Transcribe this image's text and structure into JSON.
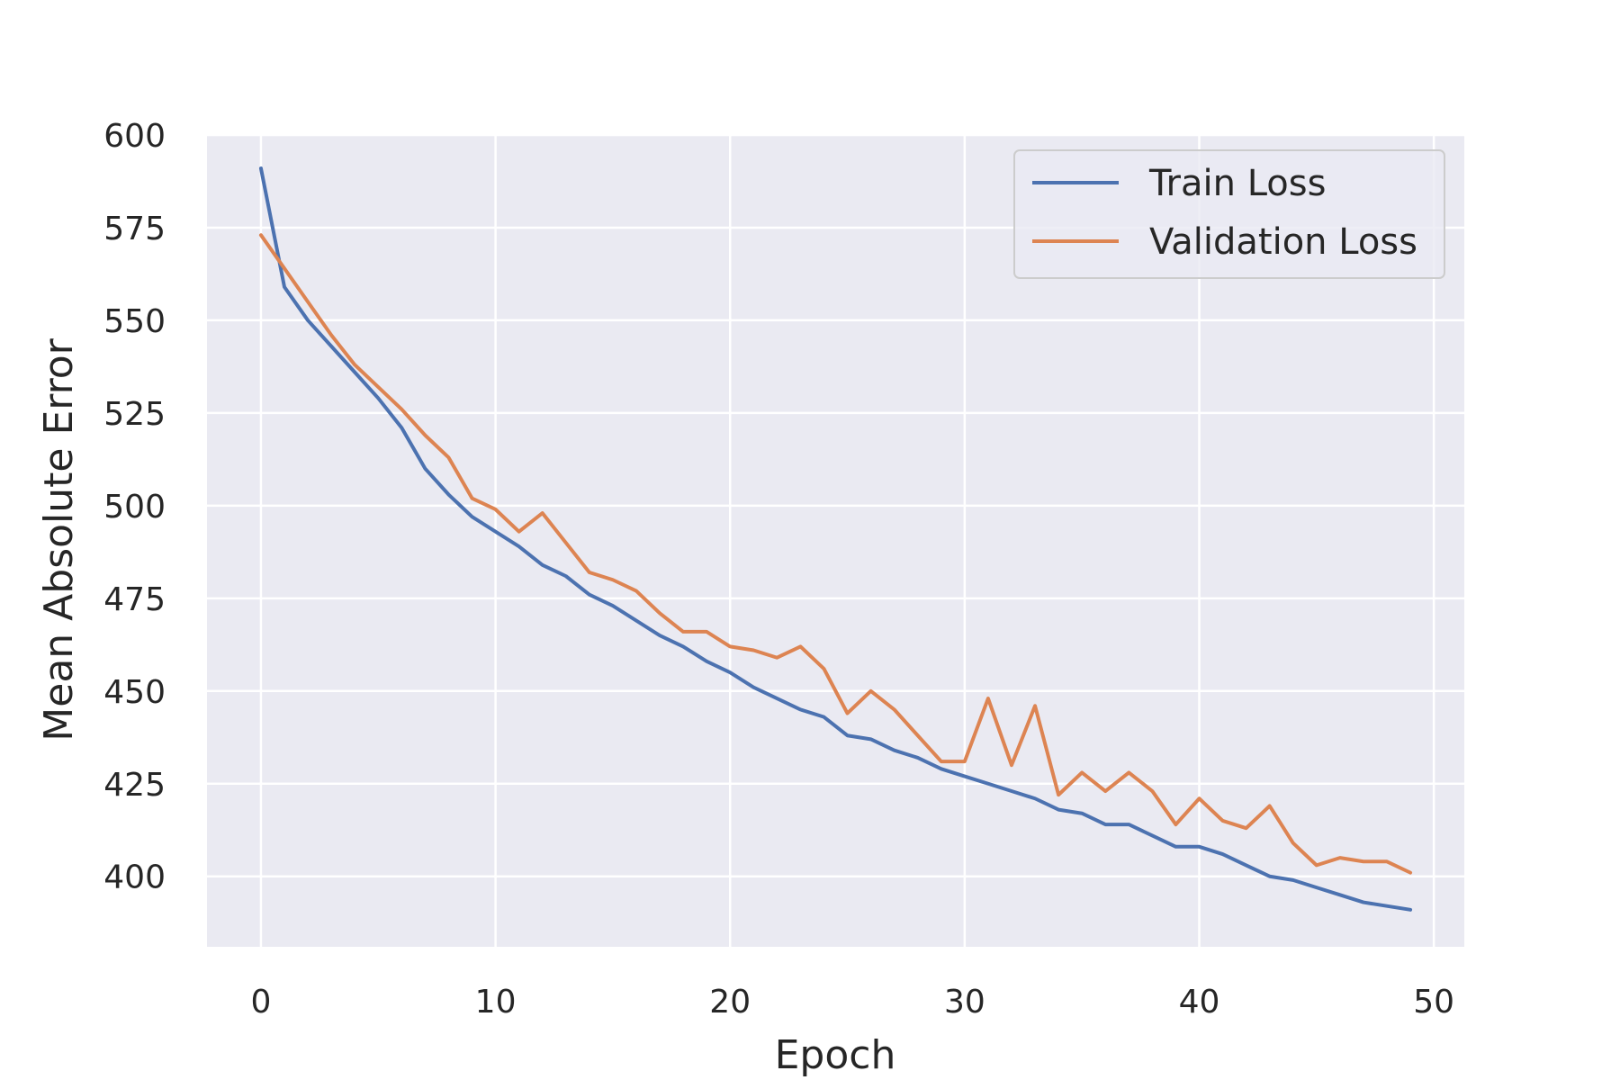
{
  "chart_data": {
    "type": "line",
    "title": "",
    "xlabel": "Epoch",
    "ylabel": "Mean Absolute Error",
    "xlim": [
      -2.3,
      51.3
    ],
    "ylim": [
      381,
      600
    ],
    "xticks": [
      0,
      10,
      20,
      30,
      40,
      50
    ],
    "yticks": [
      400,
      425,
      450,
      475,
      500,
      525,
      550,
      575,
      600
    ],
    "grid": true,
    "legend_position": "upper-right",
    "x": [
      0,
      1,
      2,
      3,
      4,
      5,
      6,
      7,
      8,
      9,
      10,
      11,
      12,
      13,
      14,
      15,
      16,
      17,
      18,
      19,
      20,
      21,
      22,
      23,
      24,
      25,
      26,
      27,
      28,
      29,
      30,
      31,
      32,
      33,
      34,
      35,
      36,
      37,
      38,
      39,
      40,
      41,
      42,
      43,
      44,
      45,
      46,
      47,
      48,
      49
    ],
    "series": [
      {
        "name": "Train Loss",
        "color": "#4c72b0",
        "values": [
          591,
          559,
          550,
          543,
          536,
          529,
          521,
          510,
          503,
          497,
          493,
          489,
          484,
          481,
          476,
          473,
          469,
          465,
          462,
          458,
          455,
          451,
          448,
          445,
          443,
          438,
          437,
          434,
          432,
          429,
          427,
          425,
          423,
          421,
          418,
          417,
          414,
          414,
          411,
          408,
          408,
          406,
          403,
          400,
          399,
          397,
          395,
          393,
          392,
          391
        ]
      },
      {
        "name": "Validation Loss",
        "color": "#dd8452",
        "values": [
          573,
          564,
          555,
          546,
          538,
          532,
          526,
          519,
          513,
          502,
          499,
          493,
          498,
          490,
          482,
          480,
          477,
          471,
          466,
          466,
          462,
          461,
          459,
          462,
          456,
          444,
          450,
          445,
          438,
          431,
          431,
          448,
          430,
          446,
          422,
          428,
          423,
          428,
          423,
          414,
          421,
          415,
          413,
          419,
          409,
          403,
          405,
          404,
          404,
          401
        ]
      }
    ]
  }
}
